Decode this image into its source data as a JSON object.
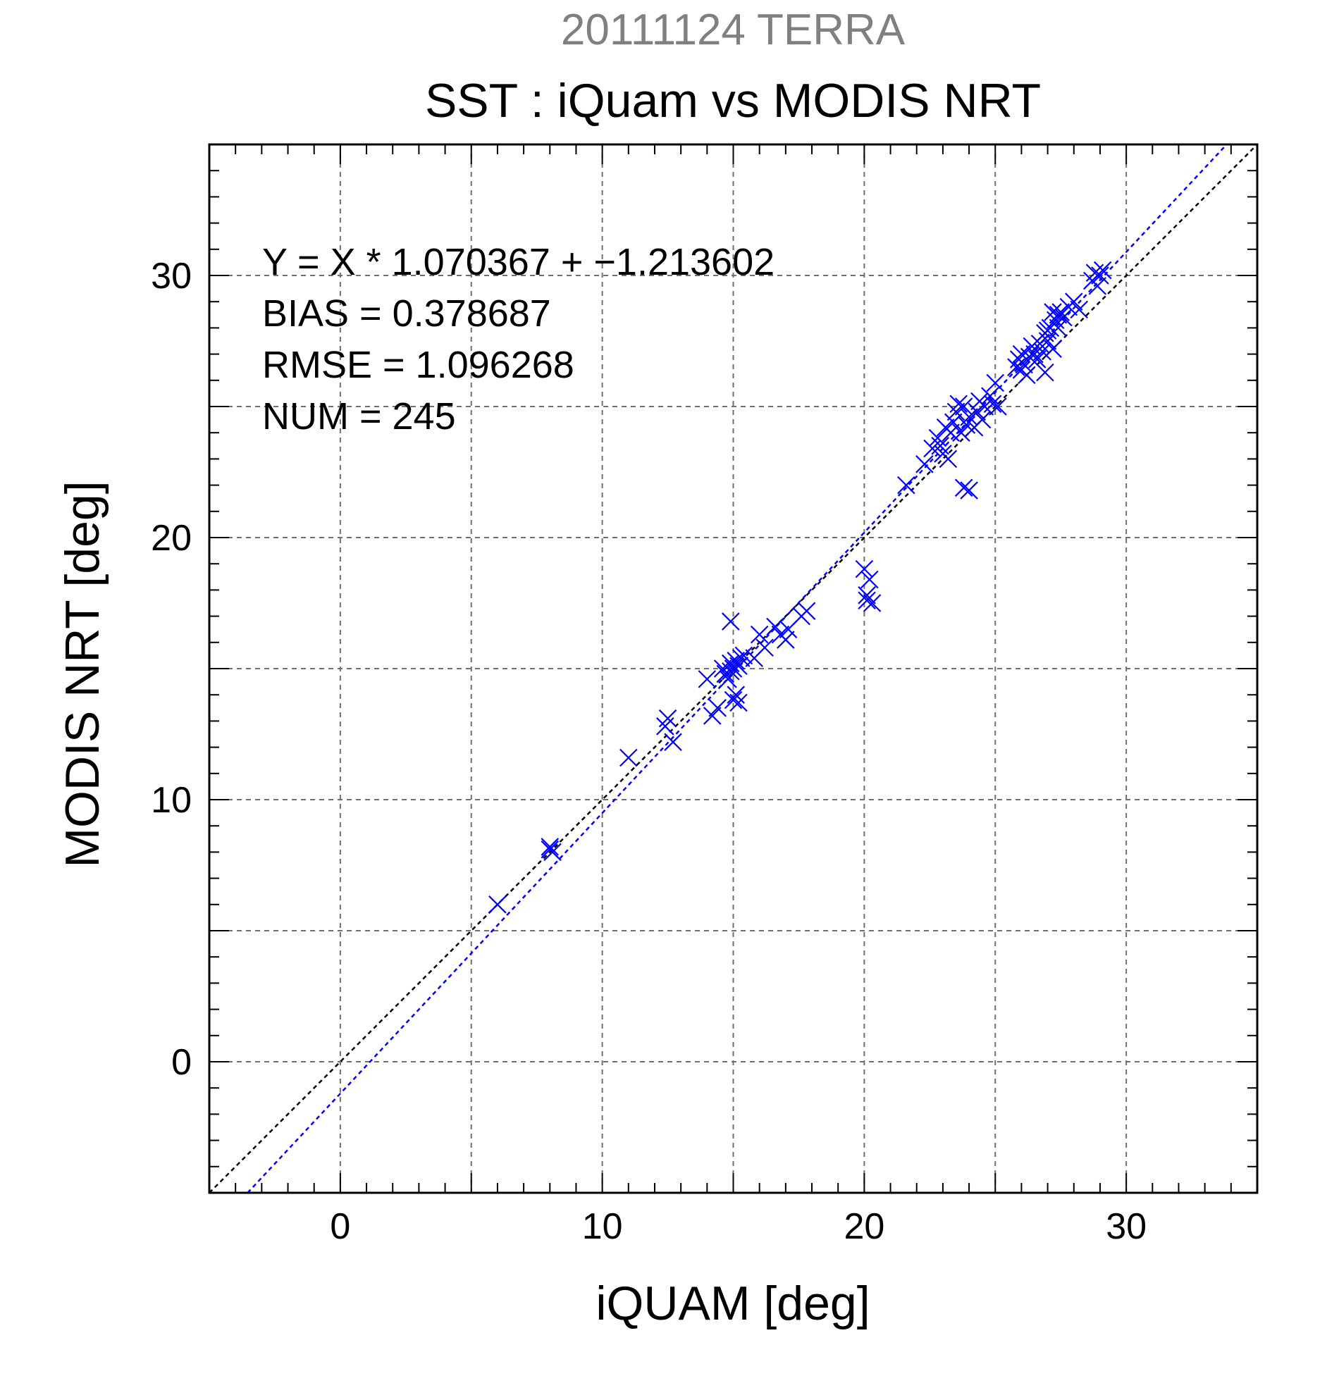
{
  "chart_data": {
    "type": "scatter",
    "title": "20111124 TERRA",
    "subtitle": "SST : iQuam vs MODIS NRT",
    "xlabel": "iQUAM [deg]",
    "ylabel": "MODIS NRT [deg]",
    "xlim": [
      -5,
      35
    ],
    "ylim": [
      -5,
      35
    ],
    "xticks": [
      0,
      10,
      20,
      30
    ],
    "yticks": [
      0,
      10,
      20,
      30
    ],
    "grid": true,
    "annotations": [
      "Y = X * 1.070367 + −1.213602",
      "BIAS = 0.378687",
      "RMSE = 1.096268",
      "NUM = 245"
    ],
    "lines": [
      {
        "kind": "identity",
        "color": "#000000",
        "slope": 1,
        "intercept": 0
      },
      {
        "kind": "regression",
        "color": "#0000ff",
        "slope": 1.070367,
        "intercept": -1.213602
      }
    ],
    "series": [
      {
        "color": "#0000ff",
        "marker": "x",
        "points": [
          [
            6.0,
            6.0
          ],
          [
            8.0,
            8.1
          ],
          [
            8.1,
            8.0
          ],
          [
            8.0,
            8.2
          ],
          [
            11.0,
            11.6
          ],
          [
            12.4,
            12.8
          ],
          [
            12.5,
            13.1
          ],
          [
            12.7,
            12.2
          ],
          [
            14.0,
            14.6
          ],
          [
            14.2,
            13.2
          ],
          [
            14.4,
            13.5
          ],
          [
            14.6,
            15.0
          ],
          [
            14.7,
            14.8
          ],
          [
            14.8,
            14.6
          ],
          [
            14.9,
            15.2
          ],
          [
            15.0,
            15.0
          ],
          [
            15.1,
            15.3
          ],
          [
            15.2,
            15.1
          ],
          [
            15.3,
            15.4
          ],
          [
            15.4,
            15.5
          ],
          [
            14.9,
            14.9
          ],
          [
            15.0,
            13.8
          ],
          [
            15.1,
            14.0
          ],
          [
            15.2,
            13.7
          ],
          [
            14.9,
            16.8
          ],
          [
            15.8,
            15.4
          ],
          [
            16.0,
            16.3
          ],
          [
            16.2,
            15.8
          ],
          [
            16.6,
            16.6
          ],
          [
            16.8,
            16.3
          ],
          [
            17.0,
            16.1
          ],
          [
            17.1,
            16.5
          ],
          [
            17.6,
            17.0
          ],
          [
            17.8,
            17.2
          ],
          [
            20.0,
            18.8
          ],
          [
            20.1,
            17.6
          ],
          [
            20.2,
            18.4
          ],
          [
            20.3,
            17.5
          ],
          [
            20.1,
            17.8
          ],
          [
            21.6,
            22.0
          ],
          [
            22.3,
            22.8
          ],
          [
            22.6,
            23.4
          ],
          [
            22.8,
            23.8
          ],
          [
            22.9,
            23.5
          ],
          [
            23.0,
            23.2
          ],
          [
            23.1,
            24.2
          ],
          [
            23.2,
            23.0
          ],
          [
            23.3,
            24.0
          ],
          [
            23.4,
            24.4
          ],
          [
            23.5,
            24.8
          ],
          [
            23.6,
            25.1
          ],
          [
            23.7,
            24.0
          ],
          [
            23.8,
            25.0
          ],
          [
            23.9,
            24.3
          ],
          [
            24.0,
            24.6
          ],
          [
            23.8,
            21.9
          ],
          [
            24.0,
            21.8
          ],
          [
            24.2,
            24.2
          ],
          [
            24.3,
            24.8
          ],
          [
            24.4,
            25.2
          ],
          [
            24.5,
            24.5
          ],
          [
            24.6,
            25.0
          ],
          [
            24.8,
            25.4
          ],
          [
            24.9,
            25.1
          ],
          [
            25.0,
            25.9
          ],
          [
            25.1,
            25.0
          ],
          [
            25.8,
            26.5
          ],
          [
            25.9,
            26.8
          ],
          [
            26.0,
            27.0
          ],
          [
            26.0,
            26.4
          ],
          [
            26.1,
            26.6
          ],
          [
            26.2,
            26.2
          ],
          [
            26.3,
            26.9
          ],
          [
            26.4,
            27.3
          ],
          [
            26.5,
            27.0
          ],
          [
            26.6,
            26.8
          ],
          [
            26.7,
            27.4
          ],
          [
            26.8,
            27.1
          ],
          [
            26.9,
            27.8
          ],
          [
            27.0,
            27.5
          ],
          [
            27.1,
            28.0
          ],
          [
            27.2,
            27.2
          ],
          [
            27.3,
            28.3
          ],
          [
            27.4,
            28.0
          ],
          [
            27.5,
            28.6
          ],
          [
            27.6,
            28.4
          ],
          [
            26.9,
            26.3
          ],
          [
            27.0,
            27.9
          ],
          [
            27.2,
            28.6
          ],
          [
            27.4,
            28.5
          ],
          [
            27.8,
            28.8
          ],
          [
            28.0,
            29.0
          ],
          [
            28.2,
            28.7
          ],
          [
            28.7,
            29.8
          ],
          [
            28.8,
            30.1
          ],
          [
            28.9,
            29.6
          ],
          [
            29.0,
            30.0
          ],
          [
            29.1,
            30.2
          ]
        ]
      }
    ]
  }
}
